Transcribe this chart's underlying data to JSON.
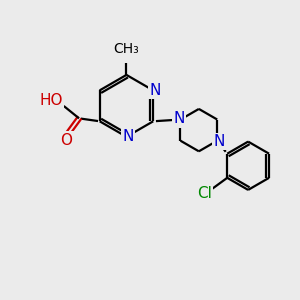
{
  "bg_color": "#ebebeb",
  "bond_color": "#000000",
  "N_color": "#0000cc",
  "O_color": "#cc0000",
  "Cl_color": "#008800",
  "line_width": 1.6,
  "figsize": [
    3.0,
    3.0
  ],
  "dpi": 100,
  "xlim": [
    0,
    10
  ],
  "ylim": [
    0,
    10
  ]
}
